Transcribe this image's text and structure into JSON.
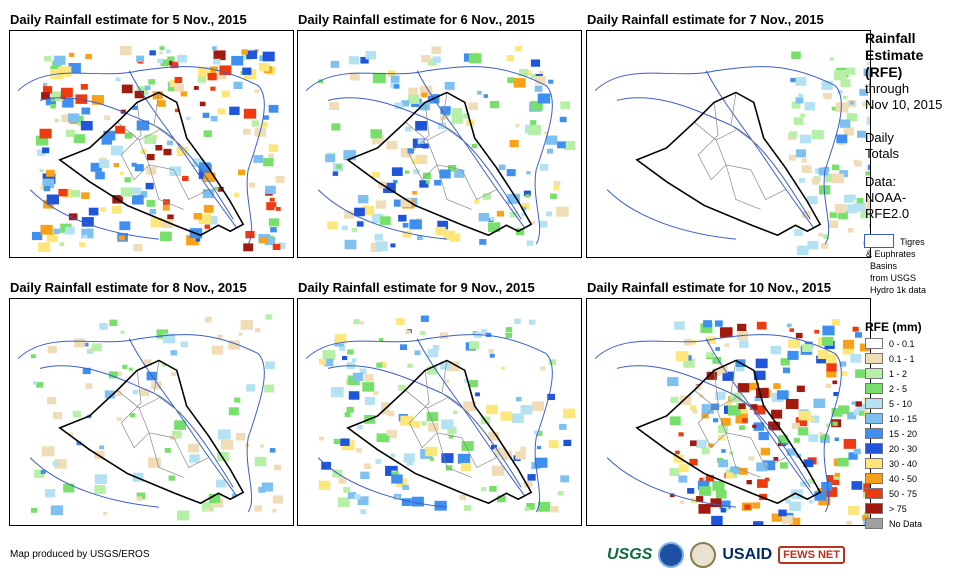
{
  "panels": [
    {
      "title": "Daily Rainfall estimate for 5 Nov., 2015",
      "intensity": 0.85
    },
    {
      "title": "Daily Rainfall estimate for 6 Nov., 2015",
      "intensity": 0.55
    },
    {
      "title": "Daily Rainfall estimate for 7 Nov., 2015",
      "intensity": 0.15
    },
    {
      "title": "Daily Rainfall estimate for 8 Nov., 2015",
      "intensity": 0.2
    },
    {
      "title": "Daily Rainfall estimate for 9 Nov., 2015",
      "intensity": 0.5
    },
    {
      "title": "Daily Rainfall estimate for 10 Nov., 2015",
      "intensity": 0.9
    }
  ],
  "sidebar": {
    "heading_1": "Rainfall",
    "heading_2": "Estimate",
    "heading_3": "(RFE)",
    "through": "through",
    "date": "Nov 10, 2015",
    "daily": "Daily",
    "totals": "Totals",
    "data_label": "Data:",
    "source_1": "NOAA-",
    "source_2": "RFE2.0",
    "basin_1": "Tigres",
    "basin_2": "& Euphrates",
    "basin_3": "Basins",
    "basin_4": "from USGS",
    "basin_5": "Hydro 1k data"
  },
  "legend": {
    "title": "RFE (mm)",
    "items": [
      {
        "label": "0 - 0.1",
        "color": "#ffffff"
      },
      {
        "label": "0.1 - 1",
        "color": "#f1dcb8"
      },
      {
        "label": "1 - 2",
        "color": "#b6efa6"
      },
      {
        "label": "2 - 5",
        "color": "#78e06a"
      },
      {
        "label": "5 - 10",
        "color": "#b4e2f2"
      },
      {
        "label": "10 - 15",
        "color": "#7ec0f0"
      },
      {
        "label": "15 - 20",
        "color": "#3f8ff0"
      },
      {
        "label": "20 - 30",
        "color": "#1f55d8"
      },
      {
        "label": "30 - 40",
        "color": "#fde67a"
      },
      {
        "label": "40 - 50",
        "color": "#f8a21a"
      },
      {
        "label": "50 - 75",
        "color": "#ee3a10"
      },
      {
        "label": "> 75",
        "color": "#a01a10"
      },
      {
        "label": "No Data",
        "color": "#a0a0a0"
      }
    ]
  },
  "footer": {
    "credit": "Map produced by USGS/EROS"
  },
  "logos": {
    "usgs": "USGS",
    "usaid": "USAID",
    "fews": "FEWS NET"
  }
}
